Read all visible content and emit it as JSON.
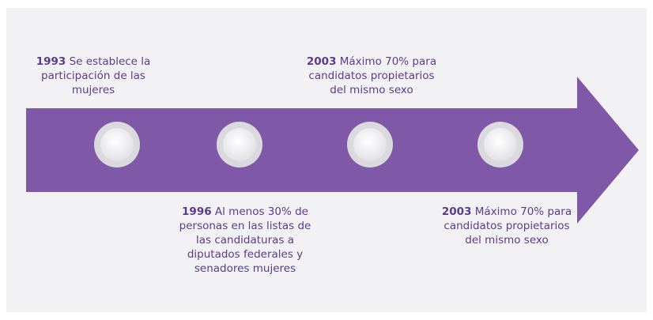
{
  "events": [
    {
      "year": "1993",
      "text": "Se establece la participación de las mujeres"
    },
    {
      "year": "1996",
      "text": "Al menos 30% de personas en las listas de las candidaturas a diputados federales y senadores mujeres"
    },
    {
      "year": "2003",
      "text": "Máximo 70% para candidatos propietarios del mismo sexo"
    },
    {
      "year": "2003",
      "text": "Máximo 70% para candidatos propietarios del mismo sexo"
    }
  ]
}
